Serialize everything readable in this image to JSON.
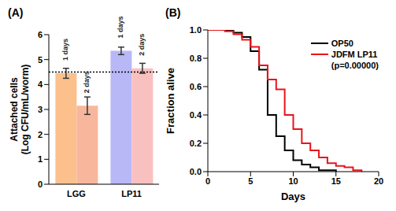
{
  "chart_data": [
    {
      "type": "bar",
      "panel_label": "(A)",
      "categories": [
        "LGG",
        "LP11"
      ],
      "series": [
        {
          "name": "1 days",
          "colors": [
            "#fbc08c",
            "#b8b8f6"
          ],
          "values": [
            4.45,
            5.35
          ],
          "errors": [
            0.2,
            0.15
          ]
        },
        {
          "name": "2 days",
          "colors": [
            "#f8b79c",
            "#f9c0c0"
          ],
          "values": [
            3.15,
            4.65
          ],
          "errors": [
            0.35,
            0.2
          ]
        }
      ],
      "ylabel": "Attached cells\n(Log CFU/mL/worm)",
      "ylim": [
        0,
        6
      ],
      "yticks": [
        0,
        1,
        2,
        3,
        4,
        5,
        6
      ],
      "reference_line": 4.5,
      "grid": false
    },
    {
      "type": "line",
      "panel_label": "(B)",
      "line_style": "step",
      "xlabel": "Days",
      "ylabel": "Fraction alive",
      "x": [
        0,
        1,
        2,
        3,
        4,
        5,
        6,
        7,
        8,
        9,
        10,
        11,
        12,
        13,
        14,
        15,
        16,
        17,
        18
      ],
      "series": [
        {
          "name": "OP50",
          "color": "#000000",
          "values": [
            1.0,
            1.0,
            1.0,
            0.98,
            0.95,
            0.85,
            0.72,
            0.4,
            0.25,
            0.15,
            0.08,
            0.05,
            0.03,
            0.01,
            0.01,
            0.0,
            null,
            null,
            null
          ]
        },
        {
          "name": "JDFM LP11",
          "color": "#e8141c",
          "values": [
            1.0,
            1.0,
            0.99,
            0.97,
            0.93,
            0.88,
            0.75,
            0.65,
            0.58,
            0.4,
            0.3,
            0.2,
            0.15,
            0.1,
            0.06,
            0.04,
            0.03,
            0.01,
            0.0
          ]
        }
      ],
      "annotation": "(p=0.00000)",
      "legend": "upper right",
      "xlim": [
        0,
        20
      ],
      "xticks": [
        0,
        5,
        10,
        15,
        20
      ],
      "ylim": [
        0,
        1
      ],
      "yticks": [
        {
          "value": 0,
          "label": "0.0"
        },
        {
          "value": 0.2,
          "label": "0.2"
        },
        {
          "value": 0.4,
          "label": "0.4"
        },
        {
          "value": 0.6,
          "label": "0.6"
        },
        {
          "value": 0.8,
          "label": "0.8"
        },
        {
          "value": 1,
          "label": "1.0"
        }
      ],
      "grid": false
    }
  ]
}
